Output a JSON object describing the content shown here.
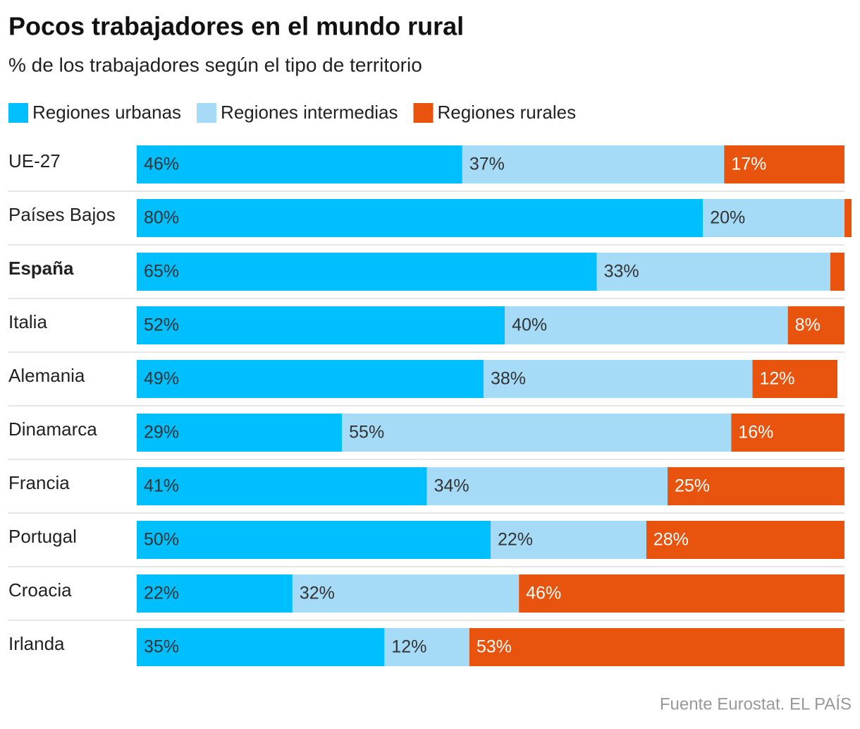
{
  "chart_data": {
    "type": "stacked-bar",
    "orientation": "horizontal",
    "title": "Pocos trabajadores en el mundo rural",
    "subtitle": "% de los trabajadores según el tipo de territorio",
    "source": "Fuente Eurostat. EL PAÍS",
    "categories": [
      "UE-27",
      "Países Bajos",
      "España",
      "Italia",
      "Alemania",
      "Dinamarca",
      "Francia",
      "Portugal",
      "Croacia",
      "Irlanda"
    ],
    "series": [
      {
        "name": "Regiones urbanas",
        "color": "#00bfff",
        "values": [
          46,
          80,
          65,
          52,
          49,
          29,
          41,
          50,
          22,
          35
        ],
        "value_labels": [
          "46%",
          "80%",
          "65%",
          "52%",
          "49%",
          "29%",
          "41%",
          "50%",
          "22%",
          "35%"
        ]
      },
      {
        "name": "Regiones intermedias",
        "color": "#a5dbf6",
        "values": [
          37,
          20,
          33,
          40,
          38,
          55,
          34,
          22,
          32,
          12
        ],
        "value_labels": [
          "37%",
          "20%",
          "33%",
          "40%",
          "38%",
          "55%",
          "34%",
          "22%",
          "32%",
          "12%"
        ]
      },
      {
        "name": "Regiones rurales",
        "color": "#e8530e",
        "values": [
          17,
          1,
          2,
          8,
          12,
          16,
          25,
          28,
          46,
          53
        ],
        "value_labels": [
          "17%",
          null,
          null,
          "8%",
          "12%",
          "16%",
          "25%",
          "28%",
          "46%",
          "53%"
        ]
      }
    ]
  }
}
